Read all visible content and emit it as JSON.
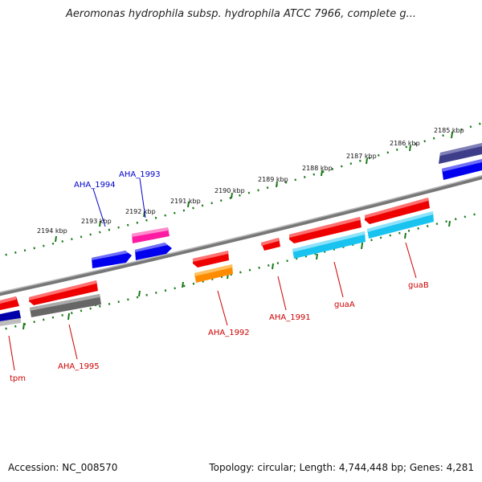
{
  "title": "Aeromonas hydrophila subsp. hydrophila ATCC 7966, complete g...",
  "footer": {
    "accession": "Accession: NC_008570",
    "topology": "Topology: circular; Length: 4,744,448 bp; Genes: 4,281"
  },
  "ticks": [
    "2185 kbp",
    "2186 kbp",
    "2187 kbp",
    "2188 kbp",
    "2189 kbp",
    "2190 kbp",
    "2191 kbp",
    "2192 kbp",
    "2193 kbp",
    "2194 kbp"
  ],
  "genes": [
    {
      "label": "AHA_1993",
      "color": "#0000cc"
    },
    {
      "label": "AHA_1994",
      "color": "#0000cc"
    },
    {
      "label": "AHA_1992",
      "color": "#cc0000"
    },
    {
      "label": "AHA_1991",
      "color": "#cc0000"
    },
    {
      "label": "guaA",
      "color": "#cc0000"
    },
    {
      "label": "guaB",
      "color": "#cc0000"
    },
    {
      "label": "AHA_1995",
      "color": "#cc0000"
    },
    {
      "label": "tpm",
      "color": "#cc0000"
    }
  ],
  "colors": {
    "backbone": "#888888",
    "ticks": "#1a7a1a",
    "cds_red": "#ff0000",
    "cds_blue": "#0000ee",
    "cds_pink": "#ff1aa3",
    "cds_orange": "#ff8c00",
    "cds_cyan": "#19c3f0",
    "cds_gray": "#666666",
    "cds_purple": "#3d3d8a"
  }
}
